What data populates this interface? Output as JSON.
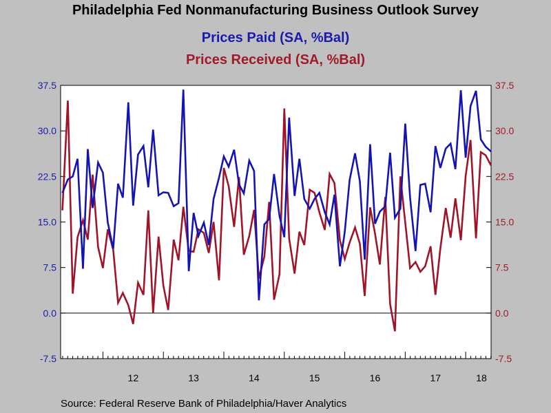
{
  "chart_data": {
    "type": "line",
    "title": "Philadelphia Fed Nonmanufacturing Business Outlook Survey",
    "source": "Source:  Federal Reserve Bank of Philadelphia/Haver Analytics",
    "x_tick_labels": [
      "12",
      "13",
      "14",
      "15",
      "16",
      "17",
      "18"
    ],
    "y_left": {
      "ticks": [
        "37.5",
        "30.0",
        "22.5",
        "15.0",
        "7.5",
        "0.0",
        "-7.5"
      ],
      "ylim": [
        -7.5,
        37.5
      ]
    },
    "y_right": {
      "ticks": [
        "37.5",
        "30.0",
        "22.5",
        "15.0",
        "7.5",
        "0.0",
        "-7.5"
      ],
      "ylim": [
        -7.5,
        37.5
      ]
    },
    "x_range": [
      2011.3,
      2018.42
    ],
    "series": [
      {
        "name": "Prices Paid (SA, %Bal)",
        "color": "#1414b4",
        "x": [
          2011.33,
          2011.42,
          2011.5,
          2011.58,
          2011.67,
          2011.75,
          2011.83,
          2011.92,
          2012.0,
          2012.08,
          2012.17,
          2012.25,
          2012.33,
          2012.42,
          2012.5,
          2012.58,
          2012.67,
          2012.75,
          2012.83,
          2012.92,
          2013.0,
          2013.08,
          2013.17,
          2013.25,
          2013.33,
          2013.42,
          2013.5,
          2013.58,
          2013.67,
          2013.75,
          2013.83,
          2013.92,
          2014.0,
          2014.08,
          2014.17,
          2014.25,
          2014.33,
          2014.42,
          2014.5,
          2014.58,
          2014.67,
          2014.75,
          2014.83,
          2014.92,
          2015.0,
          2015.08,
          2015.17,
          2015.25,
          2015.33,
          2015.42,
          2015.5,
          2015.58,
          2015.67,
          2015.75,
          2015.83,
          2015.92,
          2016.0,
          2016.08,
          2016.17,
          2016.25,
          2016.33,
          2016.42,
          2016.5,
          2016.58,
          2016.67,
          2016.75,
          2016.83,
          2016.92,
          2017.0,
          2017.08,
          2017.17,
          2017.25,
          2017.33,
          2017.42,
          2017.5,
          2017.58,
          2017.67,
          2017.75,
          2017.83,
          2017.92,
          2018.0,
          2018.08,
          2018.17,
          2018.25,
          2018.33,
          2018.42
        ],
        "values": [
          19.8,
          22.0,
          22.5,
          25.4,
          7.3,
          27.0,
          17.3,
          24.8,
          23.1,
          14.9,
          10.6,
          21.3,
          19.0,
          34.7,
          17.7,
          26.1,
          27.5,
          20.7,
          30.2,
          19.4,
          19.9,
          19.8,
          17.6,
          18.1,
          36.8,
          6.9,
          16.5,
          12.7,
          14.9,
          11.2,
          18.8,
          22.3,
          25.8,
          24.1,
          26.9,
          21.2,
          19.7,
          25.1,
          23.4,
          2.1,
          14.6,
          15.5,
          22.9,
          16.0,
          12.5,
          32.2,
          19.3,
          25.4,
          18.8,
          17.2,
          18.8,
          19.8,
          16.6,
          14.6,
          19.5,
          7.7,
          13.4,
          21.9,
          26.3,
          21.7,
          8.8,
          27.8,
          14.7,
          16.7,
          17.6,
          26.4,
          15.7,
          17.2,
          31.2,
          19.0,
          10.2,
          21.1,
          21.3,
          16.6,
          27.5,
          23.9,
          27.1,
          27.9,
          23.7,
          36.7,
          25.6,
          34.1,
          36.6,
          28.6,
          27.4,
          26.6
        ]
      },
      {
        "name": "Prices Received (SA, %Bal)",
        "color": "#a01428",
        "x": [
          2011.33,
          2011.42,
          2011.5,
          2011.58,
          2011.67,
          2011.75,
          2011.83,
          2011.92,
          2012.0,
          2012.08,
          2012.17,
          2012.25,
          2012.33,
          2012.42,
          2012.5,
          2012.58,
          2012.67,
          2012.75,
          2012.83,
          2012.92,
          2013.0,
          2013.08,
          2013.17,
          2013.25,
          2013.33,
          2013.42,
          2013.5,
          2013.58,
          2013.67,
          2013.75,
          2013.83,
          2013.92,
          2014.0,
          2014.08,
          2014.17,
          2014.25,
          2014.33,
          2014.42,
          2014.5,
          2014.58,
          2014.67,
          2014.75,
          2014.83,
          2014.92,
          2015.0,
          2015.08,
          2015.17,
          2015.25,
          2015.33,
          2015.42,
          2015.5,
          2015.58,
          2015.67,
          2015.75,
          2015.83,
          2015.92,
          2016.0,
          2016.08,
          2016.17,
          2016.25,
          2016.33,
          2016.42,
          2016.5,
          2016.58,
          2016.67,
          2016.75,
          2016.83,
          2016.92,
          2017.0,
          2017.08,
          2017.17,
          2017.25,
          2017.33,
          2017.42,
          2017.5,
          2017.58,
          2017.67,
          2017.75,
          2017.83,
          2017.92,
          2018.0,
          2018.08,
          2018.17,
          2018.25,
          2018.33,
          2018.42
        ],
        "values": [
          16.9,
          35.0,
          3.2,
          12.5,
          15.3,
          12.1,
          22.8,
          10.9,
          7.4,
          13.8,
          10.4,
          1.7,
          3.3,
          1.3,
          -1.8,
          5.0,
          3.0,
          16.9,
          0.0,
          12.6,
          4.5,
          0.5,
          12.1,
          8.7,
          17.5,
          10.2,
          10.1,
          13.8,
          13.2,
          9.9,
          15.0,
          5.4,
          23.9,
          20.9,
          14.2,
          22.4,
          9.6,
          12.7,
          17.0,
          5.7,
          9.3,
          18.3,
          2.2,
          6.4,
          33.7,
          12.3,
          6.5,
          13.4,
          11.2,
          20.3,
          19.8,
          16.6,
          13.7,
          22.9,
          21.4,
          12.0,
          8.9,
          11.6,
          14.1,
          11.4,
          2.8,
          17.4,
          13.1,
          8.0,
          19.1,
          1.5,
          -3.0,
          22.5,
          14.9,
          7.4,
          8.4,
          6.8,
          7.7,
          11.0,
          3.0,
          10.6,
          17.3,
          12.4,
          18.9,
          12.0,
          22.6,
          28.5,
          12.3,
          26.5,
          26.0,
          24.3
        ]
      }
    ],
    "zero_line": 0.0
  }
}
